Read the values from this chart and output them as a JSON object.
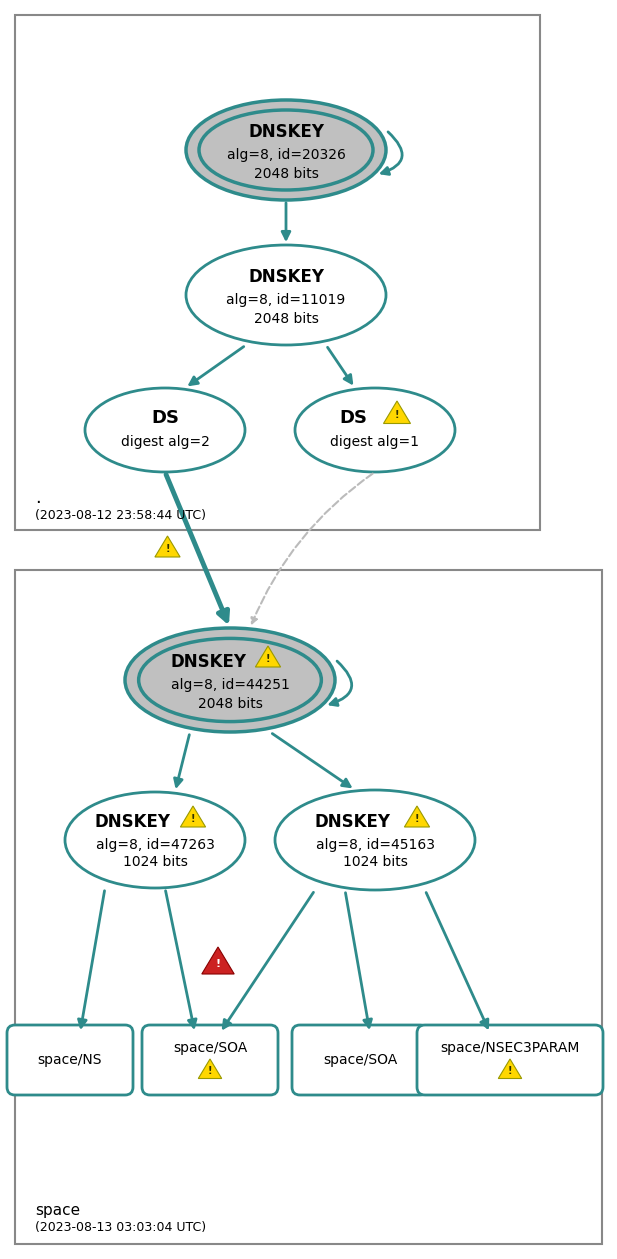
{
  "teal": "#2E8B8B",
  "gray_fill": "#C0C0C0",
  "warn_yellow": "#FFD700",
  "warn_yellow_edge": "#999900",
  "warn_red_fill": "#CC2222",
  "warn_red_edge": "#880000",
  "box_edge": "#888888",
  "dashed_color": "#BBBBBB",
  "bg": "#FFFFFF",
  "box1_date": "(2023-08-12 23:58:44 UTC)",
  "box2_label": "space",
  "box2_date": "(2023-08-13 03:03:04 UTC)",
  "figw": 6.17,
  "figh": 12.59,
  "dpi": 100
}
